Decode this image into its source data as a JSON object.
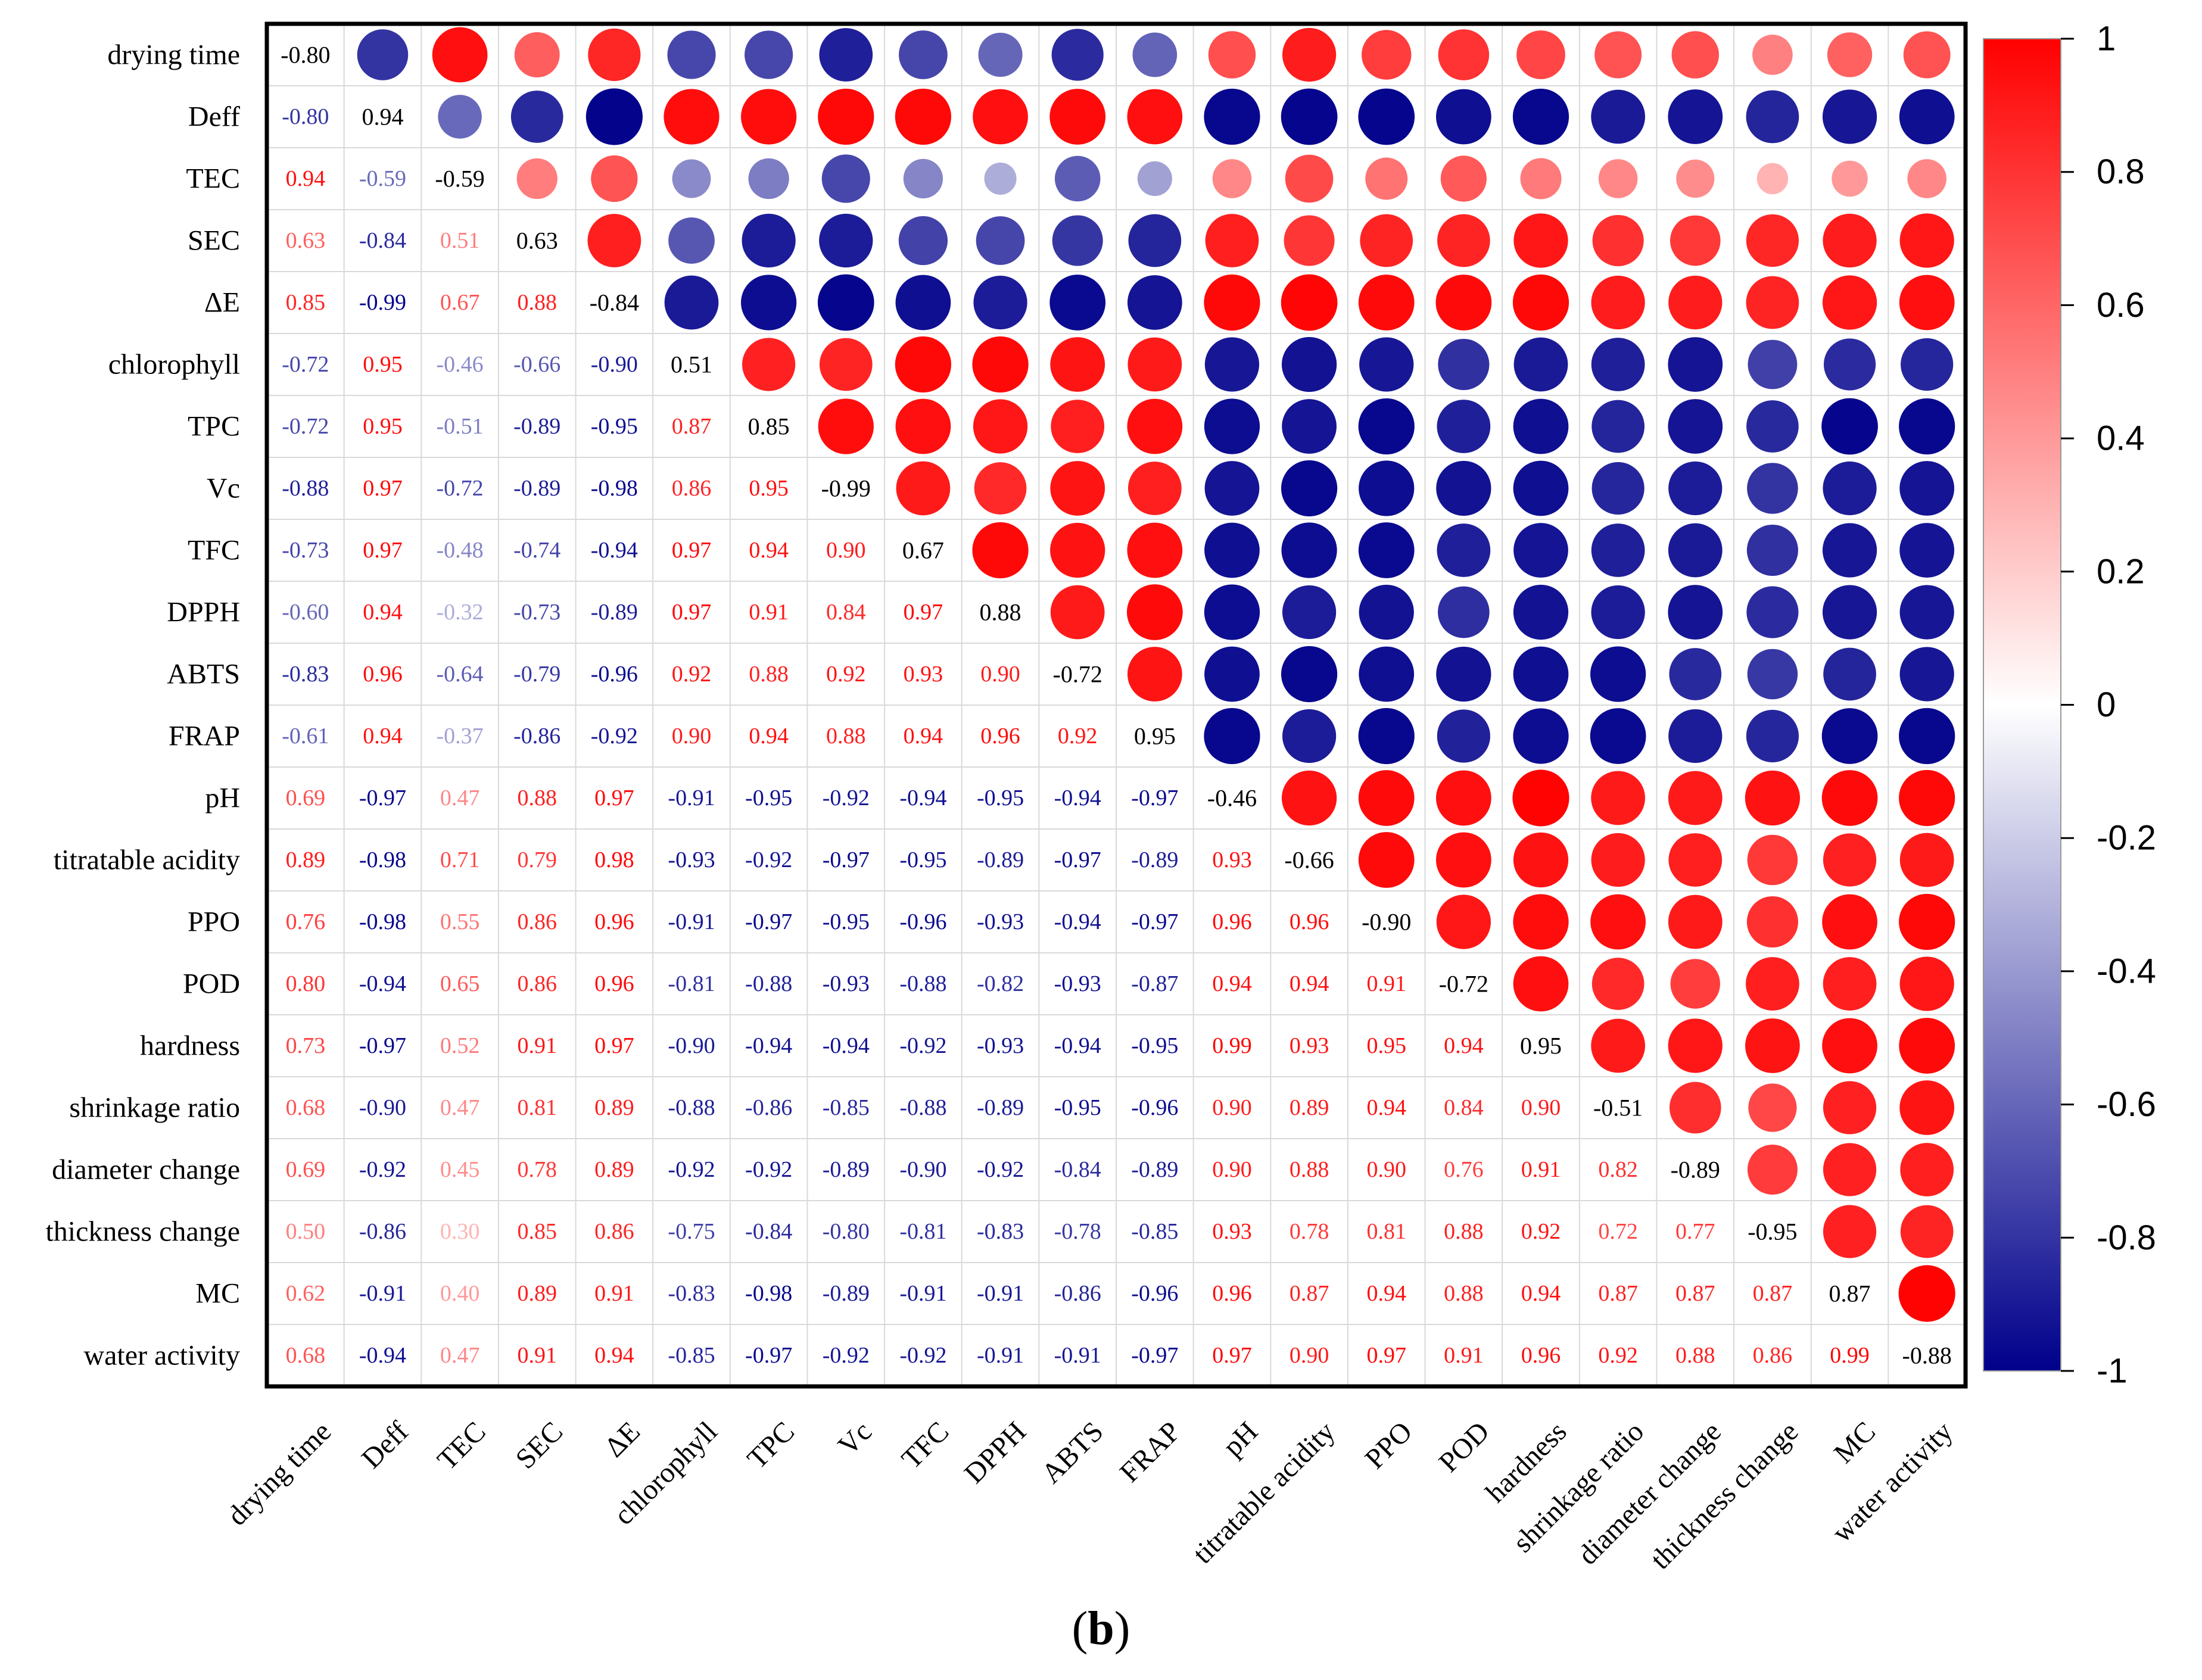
{
  "caption": {
    "open": "(",
    "letter": "b",
    "close": ")"
  },
  "chart_data": {
    "type": "heatmap",
    "title": "",
    "subtype": "correlation matrix (mixed: coefficients in lower triangle, circles in upper triangle)",
    "variables": [
      "drying time",
      "Deff",
      "TEC",
      "SEC",
      "ΔE",
      "chlorophyll",
      "TPC",
      "Vc",
      "TFC",
      "DPPH",
      "ABTS",
      "FRAP",
      "pH",
      "titratable acidity",
      "PPO",
      "POD",
      "hardness",
      "shrinkage ratio",
      "diameter change",
      "thickness change",
      "MC",
      "water activity"
    ],
    "diagonal": [
      -0.8,
      0.94,
      -0.59,
      0.63,
      -0.84,
      0.51,
      0.85,
      -0.99,
      0.67,
      0.88,
      -0.72,
      0.95,
      -0.46,
      -0.66,
      -0.9,
      -0.72,
      0.95,
      -0.51,
      -0.89,
      -0.95,
      0.87,
      -0.88
    ],
    "lower": [
      [],
      [
        -0.8
      ],
      [
        0.94,
        -0.59
      ],
      [
        0.63,
        -0.84,
        0.51
      ],
      [
        0.85,
        -0.99,
        0.67,
        0.88
      ],
      [
        -0.72,
        0.95,
        -0.46,
        -0.66,
        -0.9
      ],
      [
        -0.72,
        0.95,
        -0.51,
        -0.89,
        -0.95,
        0.87
      ],
      [
        -0.88,
        0.97,
        -0.72,
        -0.89,
        -0.98,
        0.86,
        0.95
      ],
      [
        -0.73,
        0.97,
        -0.48,
        -0.74,
        -0.94,
        0.97,
        0.94,
        0.9
      ],
      [
        -0.6,
        0.94,
        -0.32,
        -0.73,
        -0.89,
        0.97,
        0.91,
        0.84,
        0.97
      ],
      [
        -0.83,
        0.96,
        -0.64,
        -0.79,
        -0.96,
        0.92,
        0.88,
        0.92,
        0.93,
        0.9
      ],
      [
        -0.61,
        0.94,
        -0.37,
        -0.86,
        -0.92,
        0.9,
        0.94,
        0.88,
        0.94,
        0.96,
        0.92
      ],
      [
        0.69,
        -0.97,
        0.47,
        0.88,
        0.97,
        -0.91,
        -0.95,
        -0.92,
        -0.94,
        -0.95,
        -0.94,
        -0.97
      ],
      [
        0.89,
        -0.98,
        0.71,
        0.79,
        0.98,
        -0.93,
        -0.92,
        -0.97,
        -0.95,
        -0.89,
        -0.97,
        -0.89,
        0.93
      ],
      [
        0.76,
        -0.98,
        0.55,
        0.86,
        0.96,
        -0.91,
        -0.97,
        -0.95,
        -0.96,
        -0.93,
        -0.94,
        -0.97,
        0.96,
        0.96
      ],
      [
        0.8,
        -0.94,
        0.65,
        0.86,
        0.96,
        -0.81,
        -0.88,
        -0.93,
        -0.88,
        -0.82,
        -0.93,
        -0.87,
        0.94,
        0.94,
        0.91
      ],
      [
        0.73,
        -0.97,
        0.52,
        0.91,
        0.97,
        -0.9,
        -0.94,
        -0.94,
        -0.92,
        -0.93,
        -0.94,
        -0.95,
        0.99,
        0.93,
        0.95,
        0.94
      ],
      [
        0.68,
        -0.9,
        0.47,
        0.81,
        0.89,
        -0.88,
        -0.86,
        -0.85,
        -0.88,
        -0.89,
        -0.95,
        -0.96,
        0.9,
        0.89,
        0.94,
        0.84,
        0.9
      ],
      [
        0.69,
        -0.92,
        0.45,
        0.78,
        0.89,
        -0.92,
        -0.92,
        -0.89,
        -0.9,
        -0.92,
        -0.84,
        -0.89,
        0.9,
        0.88,
        0.9,
        0.76,
        0.91,
        0.82
      ],
      [
        0.5,
        -0.86,
        0.3,
        0.85,
        0.86,
        -0.75,
        -0.84,
        -0.8,
        -0.81,
        -0.83,
        -0.78,
        -0.85,
        0.93,
        0.78,
        0.81,
        0.88,
        0.92,
        0.72,
        0.77
      ],
      [
        0.62,
        -0.91,
        0.4,
        0.89,
        0.91,
        -0.83,
        -0.98,
        -0.89,
        -0.91,
        -0.91,
        -0.86,
        -0.96,
        0.96,
        0.87,
        0.94,
        0.88,
        0.94,
        0.87,
        0.87,
        0.87
      ],
      [
        0.68,
        -0.94,
        0.47,
        0.91,
        0.94,
        -0.85,
        -0.97,
        -0.92,
        -0.92,
        -0.91,
        -0.91,
        -0.97,
        0.97,
        0.9,
        0.97,
        0.91,
        0.96,
        0.92,
        0.88,
        0.86,
        0.99
      ]
    ],
    "colorbar": {
      "range": [
        -1,
        1
      ],
      "ticks": [
        1,
        0.8,
        0.6,
        0.4,
        0.2,
        0,
        -0.2,
        -0.4,
        -0.6,
        -0.8,
        -1
      ],
      "tick_labels": [
        "1",
        "0.8",
        "0.6",
        "0.4",
        "0.2",
        "0",
        "-0.2",
        "-0.4",
        "-0.6",
        "-0.8",
        "-1"
      ],
      "colors": {
        "negative": "#00008b",
        "zero": "#ffffff",
        "positive": "#ff0000"
      }
    },
    "legend_placement": "right",
    "grid": true
  }
}
